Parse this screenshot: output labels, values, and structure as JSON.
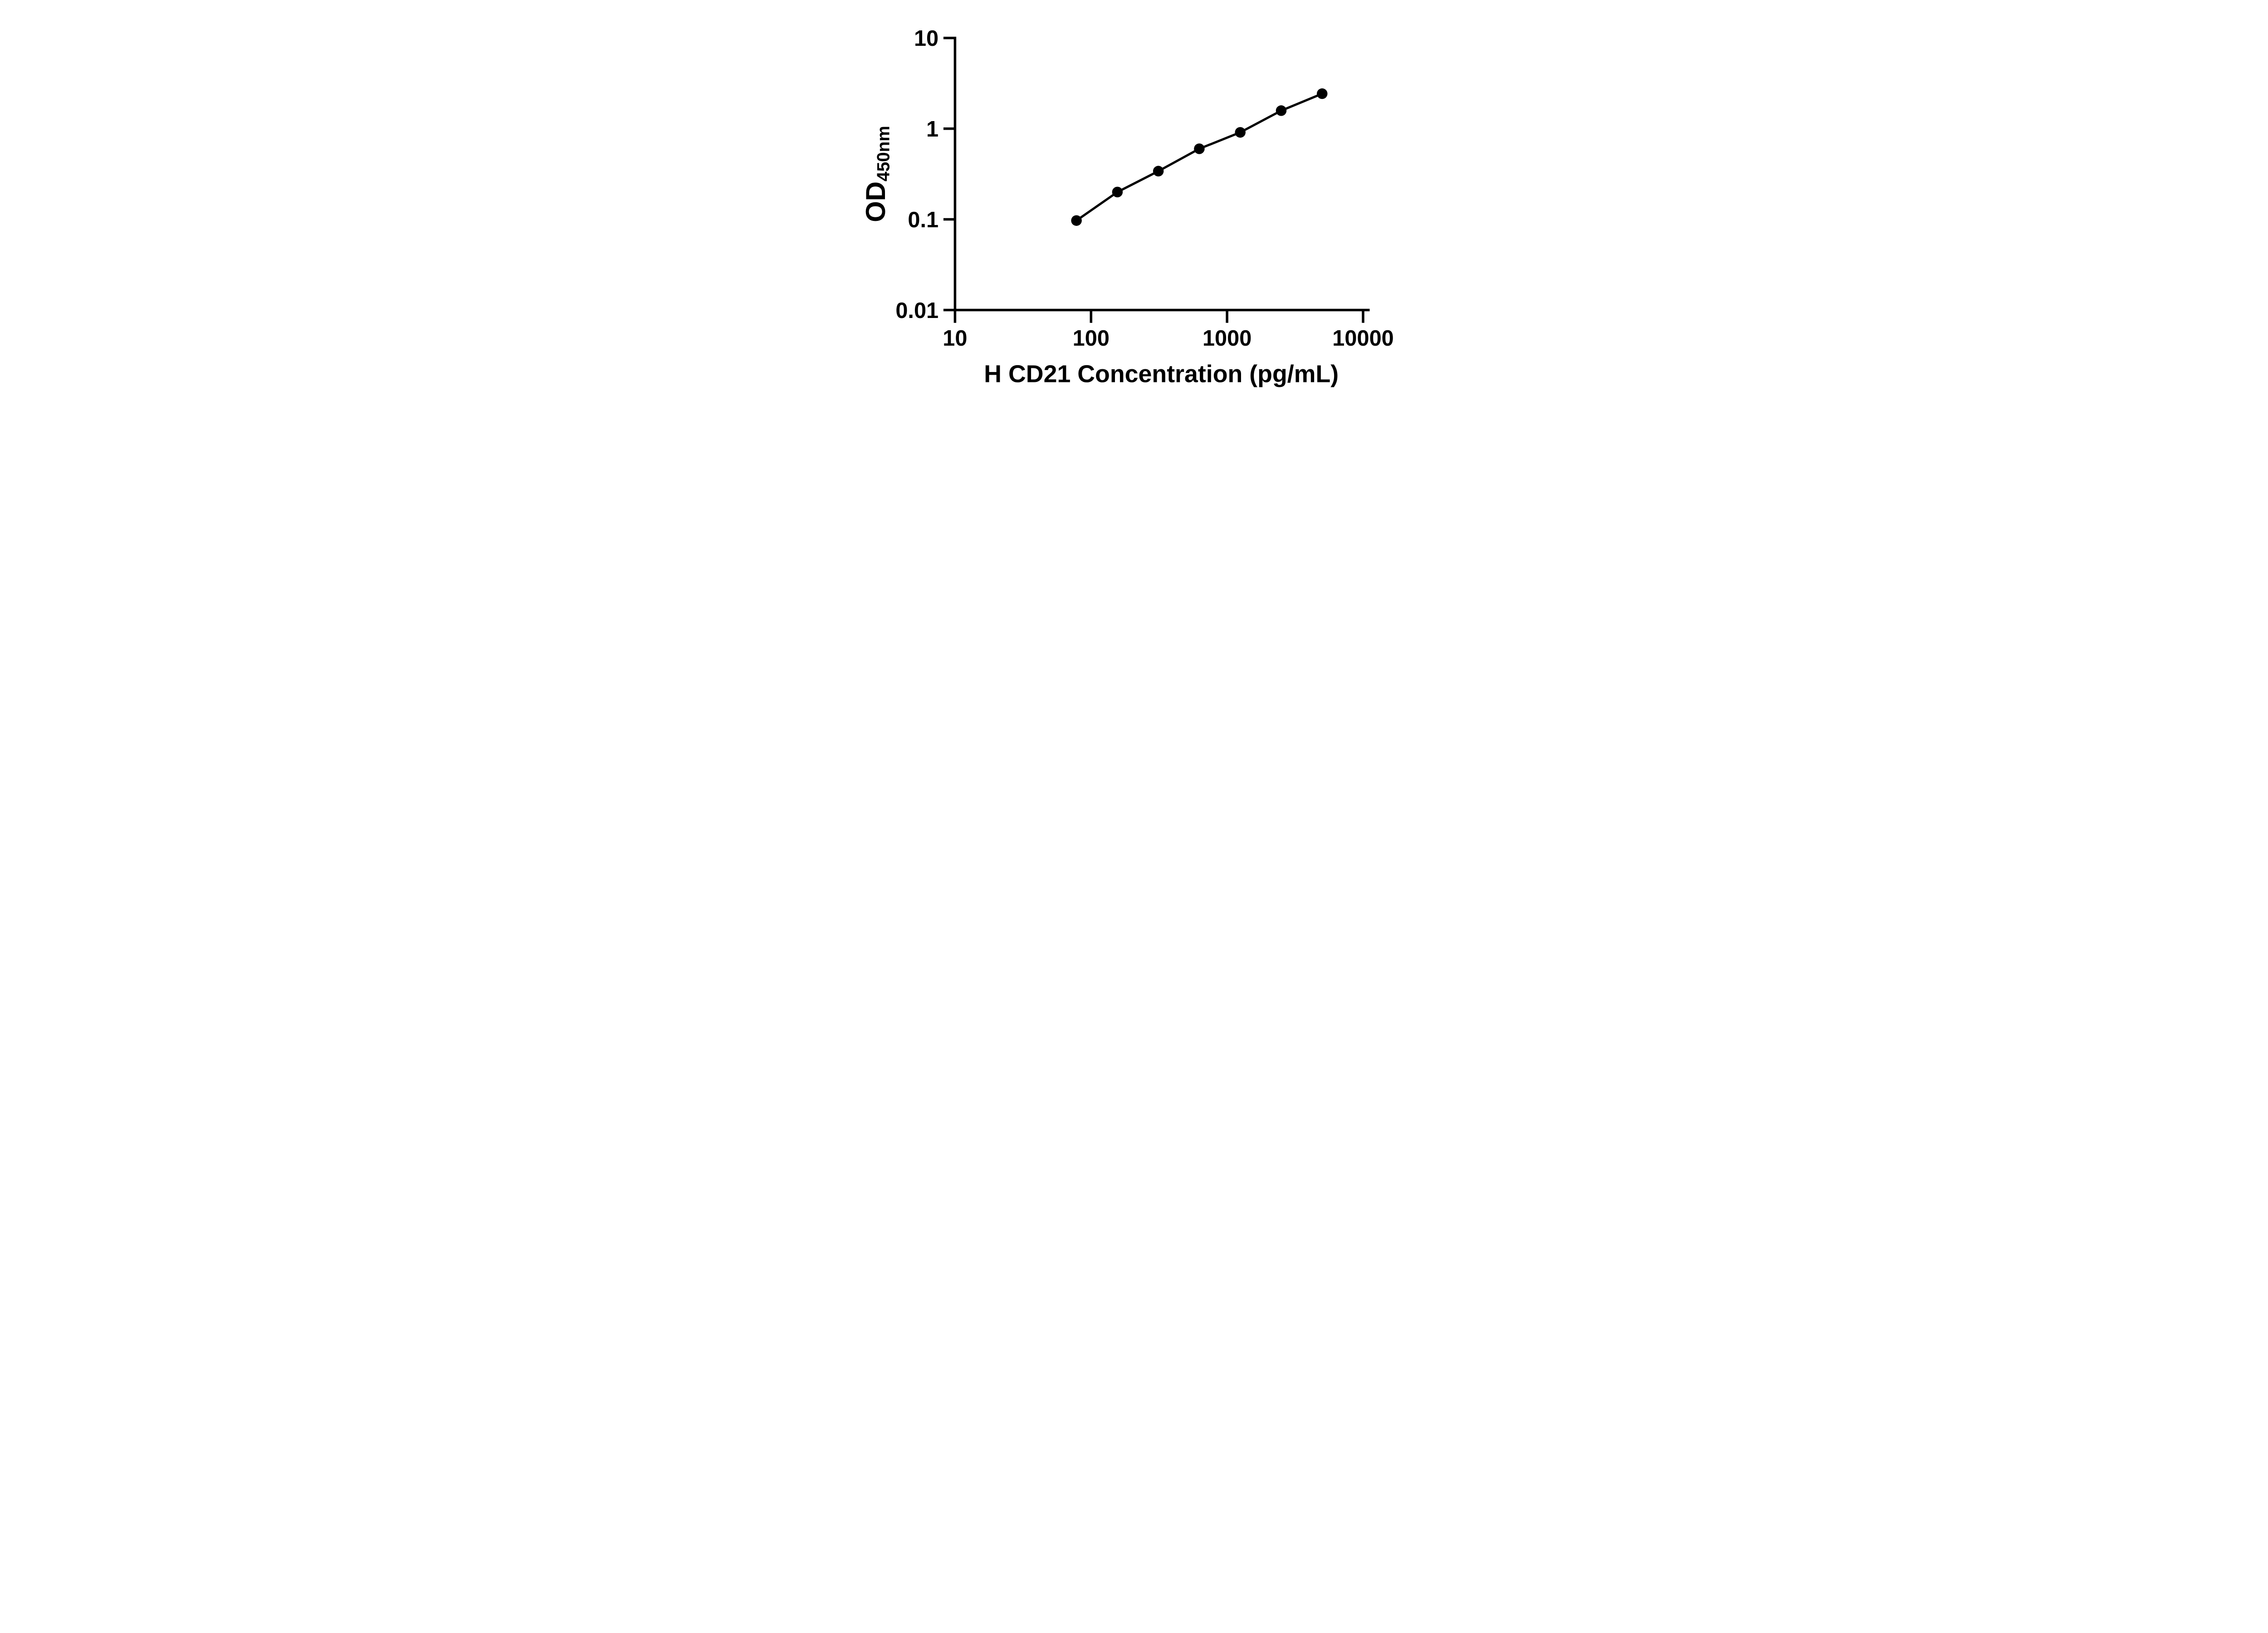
{
  "chart_data": {
    "type": "line",
    "title": "",
    "xlabel": "H CD21 Concentration (pg/mL)",
    "ylabel": "OD450nm",
    "ylabel_main": "OD",
    "ylabel_sub": "450nm",
    "x_scale": "log10",
    "y_scale": "log10",
    "xlim": [
      10,
      10000
    ],
    "ylim": [
      0.01,
      10
    ],
    "grid": false,
    "legend": "none",
    "background_color": "#ffffff",
    "axis_color": "#000000",
    "x_ticks": [
      {
        "value": 10,
        "label": "10"
      },
      {
        "value": 100,
        "label": "100"
      },
      {
        "value": 1000,
        "label": "1000"
      },
      {
        "value": 10000,
        "label": "10000"
      }
    ],
    "y_ticks": [
      {
        "value": 10,
        "label": "10"
      },
      {
        "value": 1,
        "label": "1"
      },
      {
        "value": 0.1,
        "label": "0.1"
      },
      {
        "value": 0.01,
        "label": "0.01"
      }
    ],
    "series": [
      {
        "marker": "filled-circle",
        "color": "#000000",
        "x": [
          78.125,
          156.25,
          312.5,
          625,
          1250,
          2500,
          5000
        ],
        "y": [
          0.097,
          0.2,
          0.34,
          0.6,
          0.91,
          1.58,
          2.43
        ]
      }
    ]
  }
}
